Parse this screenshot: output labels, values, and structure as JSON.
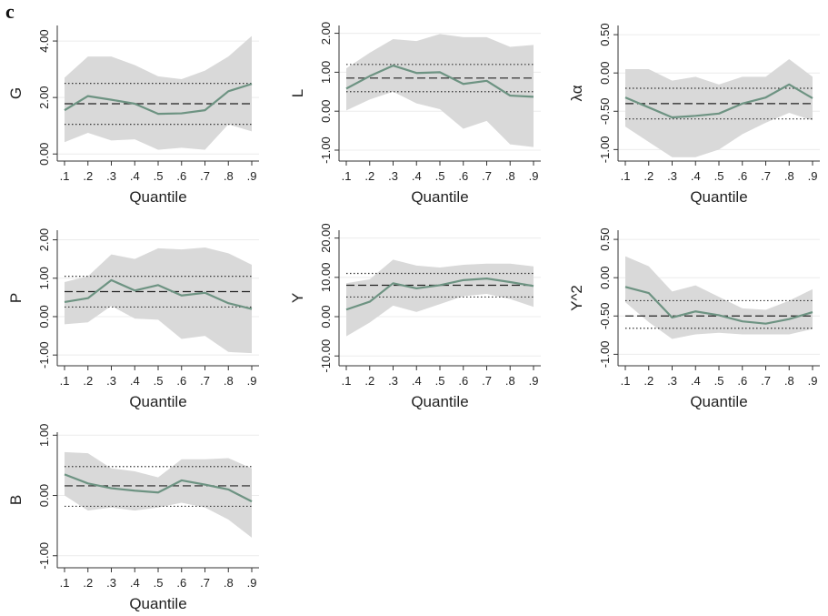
{
  "panel_label": "c",
  "colors": {
    "band": "#d9d9d9",
    "line": "#6d9382",
    "grid": "#ececec",
    "axis": "#333333",
    "mean": "#222222",
    "bounds": "#333333",
    "bounds_accent": "#e0a040"
  },
  "chart_data": [
    {
      "type": "line",
      "ylabel": "G",
      "xlabel": "Quantile",
      "x": [
        ".1",
        ".2",
        ".3",
        ".4",
        ".5",
        ".6",
        ".7",
        ".8",
        ".9"
      ],
      "yticks": [
        "0.00",
        "2.00",
        "4.00"
      ],
      "ytick_values": [
        0,
        2,
        4
      ],
      "ylim": [
        -0.25,
        4.55
      ],
      "estimate": [
        1.55,
        2.05,
        1.92,
        1.78,
        1.42,
        1.44,
        1.55,
        2.22,
        2.48
      ],
      "ci_lower": [
        0.42,
        0.75,
        0.48,
        0.52,
        0.15,
        0.22,
        0.15,
        1.05,
        0.8
      ],
      "ci_upper": [
        2.7,
        3.45,
        3.45,
        3.15,
        2.75,
        2.65,
        2.95,
        3.45,
        4.18
      ],
      "ols": 1.78,
      "ols_lower": 1.05,
      "ols_upper": 2.5
    },
    {
      "type": "line",
      "ylabel": "L",
      "xlabel": "Quantile",
      "x": [
        ".1",
        ".2",
        ".3",
        ".4",
        ".5",
        ".6",
        ".7",
        ".8",
        ".9"
      ],
      "yticks": [
        "-1.00",
        "0.00",
        "1.00",
        "2.00"
      ],
      "ytick_values": [
        -1,
        0,
        1,
        2
      ],
      "ylim": [
        -1.28,
        2.2
      ],
      "estimate": [
        0.58,
        0.9,
        1.17,
        0.98,
        1.0,
        0.7,
        0.78,
        0.4,
        0.37
      ],
      "ci_lower": [
        0.02,
        0.3,
        0.5,
        0.2,
        0.05,
        -0.45,
        -0.25,
        -0.85,
        -0.92
      ],
      "ci_upper": [
        1.1,
        1.5,
        1.85,
        1.8,
        1.98,
        1.9,
        1.9,
        1.65,
        1.7
      ],
      "ols": 0.85,
      "ols_lower": 0.5,
      "ols_upper": 1.2
    },
    {
      "type": "line",
      "ylabel": "λα",
      "xlabel": "Quantile",
      "x": [
        ".1",
        ".2",
        ".3",
        ".4",
        ".5",
        ".6",
        ".7",
        ".8",
        ".9"
      ],
      "yticks": [
        "-1.00",
        "-0.50",
        "0.00",
        "0.50"
      ],
      "ytick_values": [
        -1,
        -0.5,
        0,
        0.5
      ],
      "ylim": [
        -1.15,
        0.62
      ],
      "estimate": [
        -0.32,
        -0.45,
        -0.58,
        -0.56,
        -0.53,
        -0.4,
        -0.32,
        -0.15,
        -0.33
      ],
      "ci_lower": [
        -0.7,
        -0.9,
        -1.1,
        -1.1,
        -1.0,
        -0.8,
        -0.65,
        -0.52,
        -0.62
      ],
      "ci_upper": [
        0.05,
        0.05,
        -0.1,
        -0.05,
        -0.15,
        -0.05,
        -0.05,
        0.18,
        -0.05
      ],
      "ols": -0.4,
      "ols_lower": -0.6,
      "ols_upper": -0.2
    },
    {
      "type": "line",
      "ylabel": "P",
      "xlabel": "Quantile",
      "x": [
        ".1",
        ".2",
        ".3",
        ".4",
        ".5",
        ".6",
        ".7",
        ".8",
        ".9"
      ],
      "yticks": [
        "-1.00",
        "0.00",
        "1.00",
        "2.00"
      ],
      "ytick_values": [
        -1,
        0,
        1,
        2
      ],
      "ylim": [
        -1.28,
        2.25
      ],
      "estimate": [
        0.38,
        0.48,
        0.95,
        0.68,
        0.82,
        0.55,
        0.62,
        0.35,
        0.2
      ],
      "ci_lower": [
        -0.2,
        -0.15,
        0.28,
        -0.05,
        -0.08,
        -0.58,
        -0.5,
        -0.92,
        -0.95
      ],
      "ci_upper": [
        0.9,
        1.05,
        1.62,
        1.5,
        1.78,
        1.75,
        1.8,
        1.65,
        1.35
      ],
      "ols": 0.65,
      "ols_lower": 0.25,
      "ols_upper": 1.05
    },
    {
      "type": "line",
      "ylabel": "Y",
      "xlabel": "Quantile",
      "x": [
        ".1",
        ".2",
        ".3",
        ".4",
        ".5",
        ".6",
        ".7",
        ".8",
        ".9"
      ],
      "yticks": [
        "-10.00",
        "0.00",
        "10.00",
        "20.00"
      ],
      "ytick_values": [
        -10,
        0,
        10,
        20
      ],
      "ylim": [
        -12.5,
        22
      ],
      "estimate": [
        1.8,
        3.8,
        8.5,
        7.2,
        8.0,
        9.3,
        9.7,
        8.8,
        7.8
      ],
      "ci_lower": [
        -5.0,
        -1.5,
        2.8,
        1.2,
        3.2,
        5.2,
        5.8,
        4.5,
        2.5
      ],
      "ci_upper": [
        8.5,
        9.5,
        14.5,
        13.0,
        12.5,
        13.2,
        13.5,
        13.5,
        12.8
      ],
      "ols": 8.0,
      "ols_lower": 5.0,
      "ols_upper": 11.0
    },
    {
      "type": "line",
      "ylabel": "Y^2",
      "xlabel": "Quantile",
      "x": [
        ".1",
        ".2",
        ".3",
        ".4",
        ".5",
        ".6",
        ".7",
        ".8",
        ".9"
      ],
      "yticks": [
        "-1.00",
        "-0.50",
        "0.00",
        "0.50"
      ],
      "ytick_values": [
        -1,
        -0.5,
        0,
        0.5
      ],
      "ylim": [
        -1.15,
        0.62
      ],
      "estimate": [
        -0.12,
        -0.2,
        -0.52,
        -0.44,
        -0.49,
        -0.57,
        -0.6,
        -0.54,
        -0.45
      ],
      "ci_lower": [
        -0.32,
        -0.58,
        -0.8,
        -0.74,
        -0.72,
        -0.74,
        -0.74,
        -0.74,
        -0.67
      ],
      "ci_upper": [
        0.28,
        0.15,
        -0.18,
        -0.1,
        -0.25,
        -0.4,
        -0.42,
        -0.3,
        -0.15
      ],
      "ols": -0.5,
      "ols_lower": -0.66,
      "ols_upper": -0.3
    },
    {
      "type": "line",
      "ylabel": "B",
      "xlabel": "Quantile",
      "x": [
        ".1",
        ".2",
        ".3",
        ".4",
        ".5",
        ".6",
        ".7",
        ".8",
        ".9"
      ],
      "yticks": [
        "-1.00",
        "0.00",
        "1.00"
      ],
      "ytick_values": [
        -1,
        0,
        1
      ],
      "ylim": [
        -1.2,
        1.05
      ],
      "estimate": [
        0.35,
        0.2,
        0.12,
        0.08,
        0.05,
        0.25,
        0.18,
        0.1,
        -0.1
      ],
      "ci_lower": [
        0.0,
        -0.25,
        -0.2,
        -0.25,
        -0.2,
        -0.12,
        -0.2,
        -0.4,
        -0.7
      ],
      "ci_upper": [
        0.72,
        0.7,
        0.45,
        0.4,
        0.3,
        0.6,
        0.6,
        0.62,
        0.45
      ],
      "ols": 0.16,
      "ols_lower": -0.18,
      "ols_upper": 0.48
    }
  ]
}
